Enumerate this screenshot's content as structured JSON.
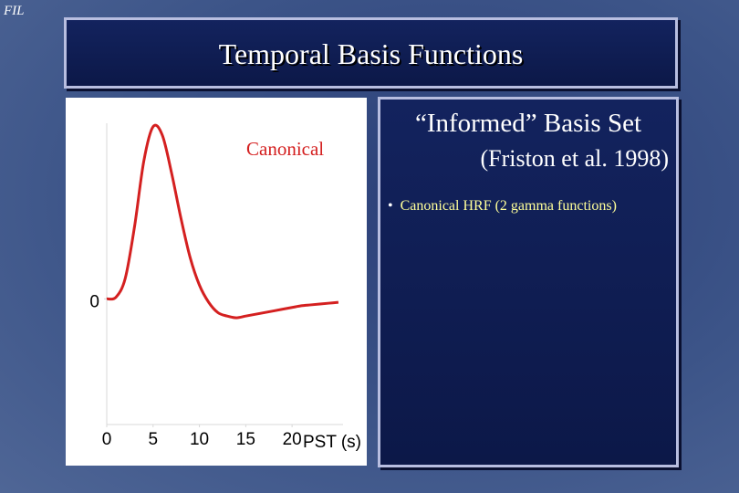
{
  "header": {
    "logo": "FIL",
    "title": "Temporal Basis Functions"
  },
  "panel": {
    "heading": "“Informed” Basis Set",
    "citation": "(Friston et al. 1998)",
    "bullets": [
      "Canonical HRF (2 gamma functions)"
    ]
  },
  "chart_data": {
    "type": "line",
    "annotation": "Canonical",
    "x_label": "PST (s)",
    "x": [
      0,
      1,
      2,
      3,
      4,
      5,
      6,
      7,
      8,
      9,
      10,
      11,
      12,
      13,
      14,
      15,
      16,
      17,
      18,
      19,
      20,
      21,
      22,
      23,
      24,
      25
    ],
    "series": [
      {
        "name": "Canonical",
        "color": "#d42020",
        "values": [
          0,
          0.01,
          0.12,
          0.42,
          0.8,
          1.0,
          0.95,
          0.73,
          0.47,
          0.24,
          0.08,
          -0.02,
          -0.08,
          -0.1,
          -0.11,
          -0.1,
          -0.09,
          -0.08,
          -0.07,
          -0.06,
          -0.05,
          -0.04,
          -0.035,
          -0.03,
          -0.025,
          -0.02
        ]
      }
    ],
    "xlim": [
      0,
      25.5
    ],
    "ylim": [
      -0.73,
      1.02
    ],
    "xticks": [
      0,
      5,
      10,
      15,
      20
    ],
    "yticks": [
      0
    ]
  }
}
